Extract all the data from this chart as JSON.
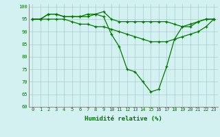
{
  "title": "",
  "xlabel": "Humidité relative (%)",
  "ylabel": "",
  "background_color": "#d4f1f1",
  "grid_color": "#aacccc",
  "line_color": "#007700",
  "xlim": [
    -0.5,
    23.5
  ],
  "ylim": [
    60,
    101
  ],
  "xticks": [
    0,
    1,
    2,
    3,
    4,
    5,
    6,
    7,
    8,
    9,
    10,
    11,
    12,
    13,
    14,
    15,
    16,
    17,
    18,
    19,
    20,
    21,
    22,
    23
  ],
  "yticks": [
    60,
    65,
    70,
    75,
    80,
    85,
    90,
    95,
    100
  ],
  "line1_x": [
    0,
    1,
    2,
    3,
    4,
    5,
    6,
    7,
    8,
    9,
    10,
    11,
    12,
    13,
    14,
    15,
    16,
    17,
    18,
    19,
    20,
    21,
    22,
    23
  ],
  "line1_y": [
    95,
    95,
    97,
    97,
    96,
    96,
    96,
    96,
    97,
    96,
    89,
    84,
    75,
    74,
    70,
    66,
    67,
    76,
    87,
    92,
    92,
    94,
    95,
    95
  ],
  "line2_x": [
    0,
    1,
    2,
    3,
    4,
    5,
    6,
    7,
    8,
    9,
    10,
    11,
    12,
    13,
    14,
    15,
    16,
    17,
    18,
    19,
    20,
    21,
    22,
    23
  ],
  "line2_y": [
    95,
    95,
    97,
    97,
    96,
    96,
    96,
    97,
    97,
    98,
    95,
    94,
    94,
    94,
    94,
    94,
    94,
    94,
    93,
    92,
    93,
    94,
    95,
    95
  ],
  "line3_x": [
    0,
    1,
    2,
    3,
    4,
    5,
    6,
    7,
    8,
    9,
    10,
    11,
    12,
    13,
    14,
    15,
    16,
    17,
    18,
    19,
    20,
    21,
    22,
    23
  ],
  "line3_y": [
    95,
    95,
    95,
    95,
    95,
    94,
    93,
    93,
    92,
    92,
    91,
    90,
    89,
    88,
    87,
    86,
    86,
    86,
    87,
    88,
    89,
    90,
    92,
    95
  ],
  "tick_fontsize": 5.0,
  "xlabel_fontsize": 6.5,
  "marker_size": 3.5,
  "line_width": 0.9
}
